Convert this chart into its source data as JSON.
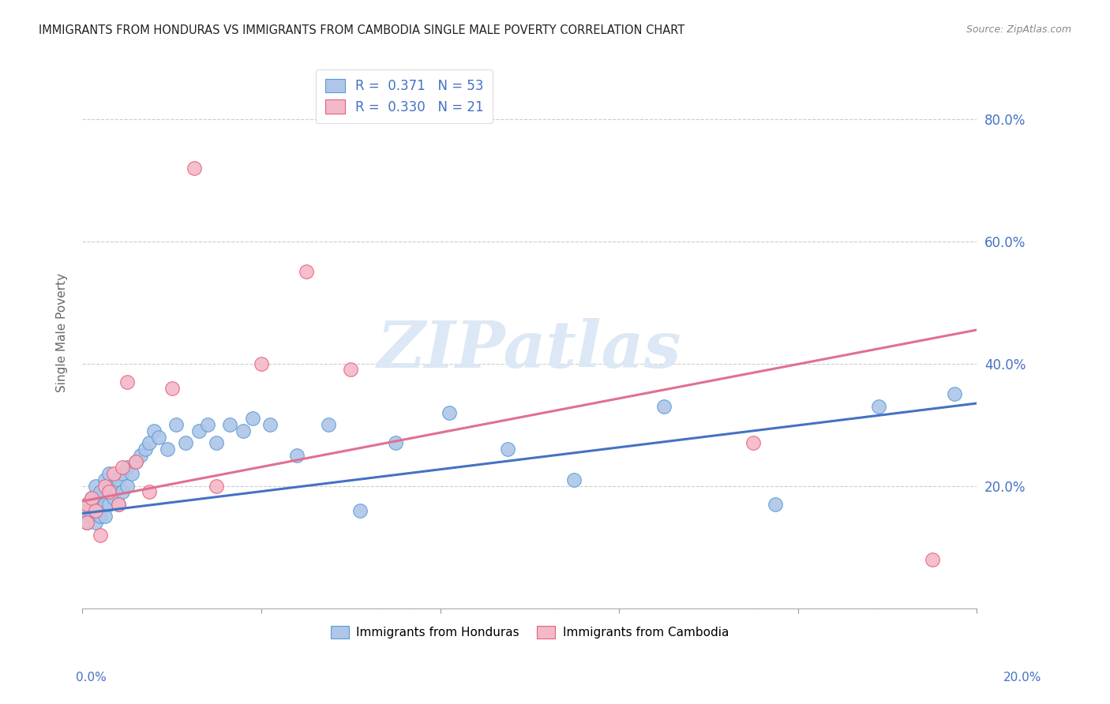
{
  "title": "IMMIGRANTS FROM HONDURAS VS IMMIGRANTS FROM CAMBODIA SINGLE MALE POVERTY CORRELATION CHART",
  "source": "Source: ZipAtlas.com",
  "ylabel": "Single Male Poverty",
  "legend_label1": "Immigrants from Honduras",
  "legend_label2": "Immigrants from Cambodia",
  "r1": 0.371,
  "n1": 53,
  "r2": 0.33,
  "n2": 21,
  "color_honduras_fill": "#aec6e8",
  "color_honduras_edge": "#5b9bd5",
  "color_cambodia_fill": "#f4b8c8",
  "color_cambodia_edge": "#e8607a",
  "color_line_honduras": "#4472C4",
  "color_line_cambodia": "#e07090",
  "color_text_blue": "#4472C4",
  "watermark_text": "ZIPatlas",
  "watermark_color": "#dce8f5",
  "xlim": [
    0.0,
    0.2
  ],
  "ylim": [
    0.0,
    0.9
  ],
  "background": "#ffffff",
  "grid_color": "#cccccc",
  "yticks": [
    0.0,
    0.2,
    0.4,
    0.6,
    0.8
  ],
  "ytick_labels": [
    "",
    "20.0%",
    "40.0%",
    "60.0%",
    "80.0%"
  ],
  "xticks": [
    0.0,
    0.04,
    0.08,
    0.12,
    0.16,
    0.2
  ],
  "honduras_x": [
    0.001,
    0.001,
    0.002,
    0.002,
    0.002,
    0.003,
    0.003,
    0.003,
    0.003,
    0.004,
    0.004,
    0.005,
    0.005,
    0.005,
    0.006,
    0.006,
    0.006,
    0.007,
    0.007,
    0.008,
    0.008,
    0.009,
    0.009,
    0.01,
    0.01,
    0.011,
    0.012,
    0.013,
    0.014,
    0.015,
    0.016,
    0.017,
    0.019,
    0.021,
    0.023,
    0.026,
    0.028,
    0.03,
    0.033,
    0.036,
    0.038,
    0.042,
    0.048,
    0.055,
    0.062,
    0.07,
    0.082,
    0.095,
    0.11,
    0.13,
    0.155,
    0.178,
    0.195
  ],
  "honduras_y": [
    0.14,
    0.16,
    0.15,
    0.17,
    0.18,
    0.14,
    0.16,
    0.18,
    0.2,
    0.15,
    0.19,
    0.15,
    0.17,
    0.21,
    0.17,
    0.19,
    0.22,
    0.18,
    0.2,
    0.17,
    0.21,
    0.19,
    0.22,
    0.2,
    0.23,
    0.22,
    0.24,
    0.25,
    0.26,
    0.27,
    0.29,
    0.28,
    0.26,
    0.3,
    0.27,
    0.29,
    0.3,
    0.27,
    0.3,
    0.29,
    0.31,
    0.3,
    0.25,
    0.3,
    0.16,
    0.27,
    0.32,
    0.26,
    0.21,
    0.33,
    0.17,
    0.33,
    0.35
  ],
  "cambodia_x": [
    0.001,
    0.001,
    0.002,
    0.003,
    0.004,
    0.005,
    0.006,
    0.007,
    0.008,
    0.009,
    0.01,
    0.012,
    0.015,
    0.02,
    0.025,
    0.03,
    0.04,
    0.05,
    0.06,
    0.15,
    0.19
  ],
  "cambodia_y": [
    0.14,
    0.17,
    0.18,
    0.16,
    0.12,
    0.2,
    0.19,
    0.22,
    0.17,
    0.23,
    0.37,
    0.24,
    0.19,
    0.36,
    0.72,
    0.2,
    0.4,
    0.55,
    0.39,
    0.27,
    0.08
  ],
  "line_h_x0": 0.0,
  "line_h_y0": 0.155,
  "line_h_x1": 0.2,
  "line_h_y1": 0.335,
  "line_c_x0": 0.0,
  "line_c_y0": 0.175,
  "line_c_x1": 0.2,
  "line_c_y1": 0.455
}
